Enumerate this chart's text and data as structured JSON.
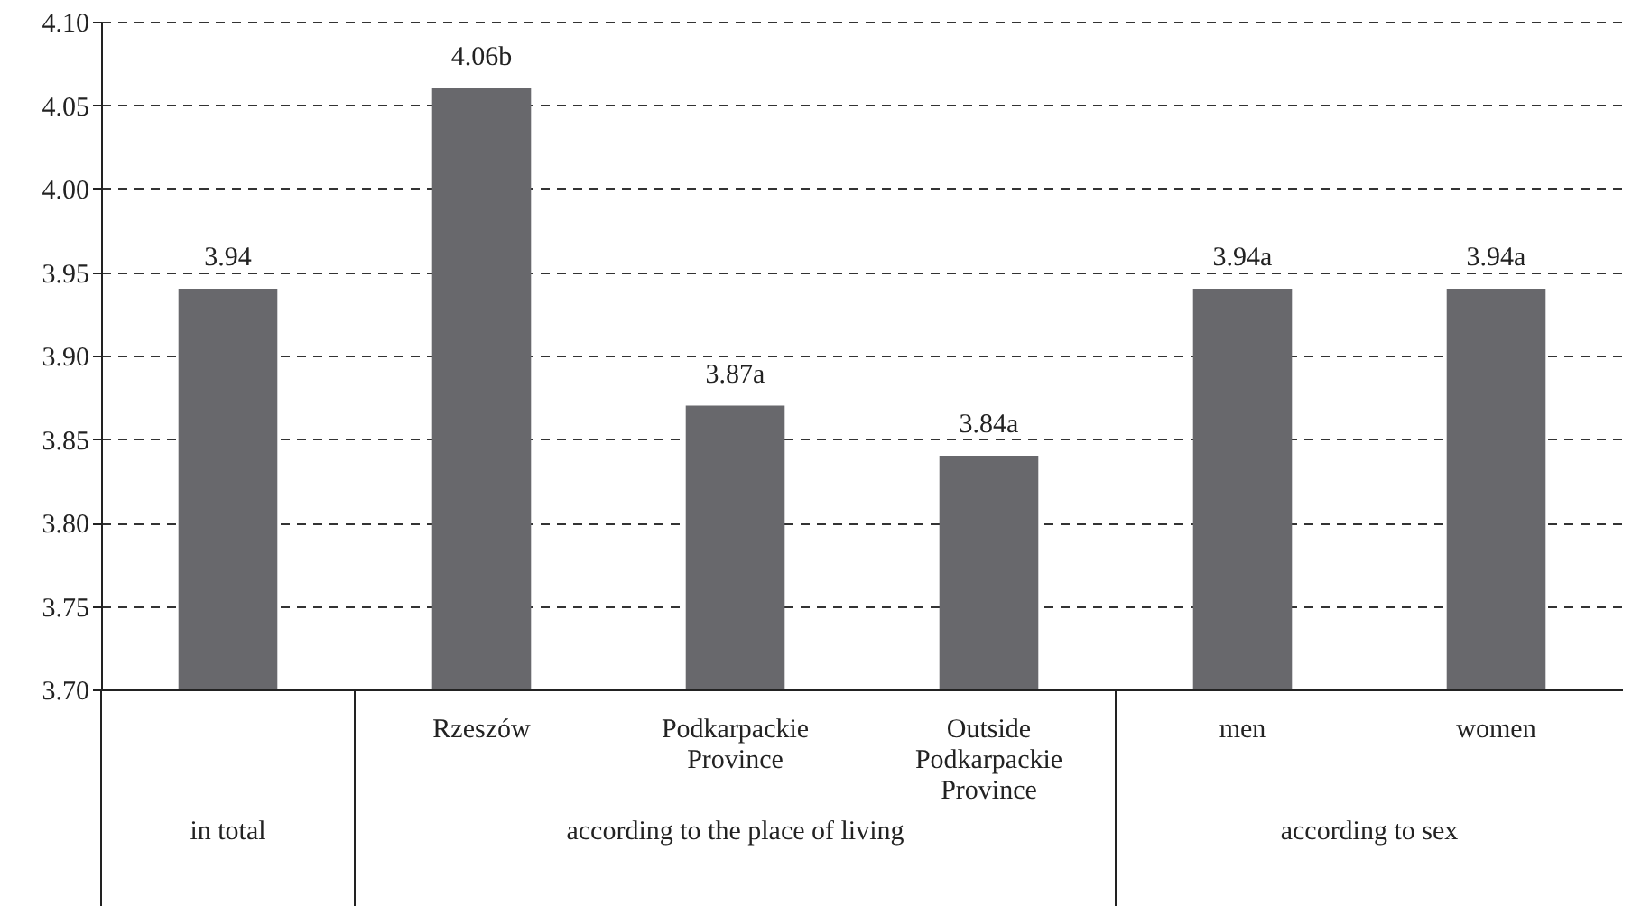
{
  "chart_data": {
    "type": "bar",
    "categories": [
      null,
      "Rzeszów",
      "Podkarpackie Province",
      "Outside Podkarpackie Province",
      "men",
      "women"
    ],
    "values": [
      3.94,
      4.06,
      3.87,
      3.84,
      3.94,
      3.94
    ],
    "value_labels": [
      "3.94",
      "4.06b",
      "3.87a",
      "3.84a",
      "3.94a",
      "3.94a"
    ],
    "color": "#68686c",
    "ylim": [
      3.7,
      4.1
    ],
    "yticks": [
      {
        "value": 3.7,
        "label": "3.70"
      },
      {
        "value": 3.75,
        "label": "3.75"
      },
      {
        "value": 3.8,
        "label": "3.80"
      },
      {
        "value": 3.85,
        "label": "3.85"
      },
      {
        "value": 3.9,
        "label": "3.90"
      },
      {
        "value": 3.95,
        "label": "3.95"
      },
      {
        "value": 4.0,
        "label": "4.00"
      },
      {
        "value": 4.05,
        "label": "4.05"
      },
      {
        "value": 4.1,
        "label": "4.10"
      }
    ],
    "grid": "y",
    "annotations": [
      "in total",
      "according to the place of living",
      "according to sex"
    ]
  }
}
